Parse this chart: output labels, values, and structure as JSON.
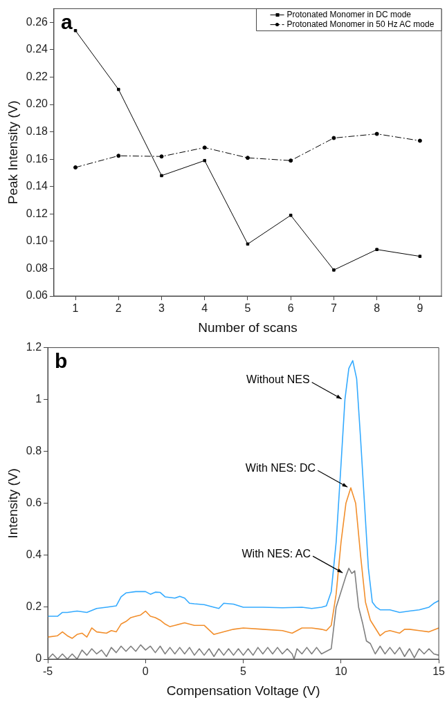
{
  "chart_data": [
    {
      "type": "line",
      "xlabel": "Number of scans",
      "ylabel": "Peak Intensity (V)",
      "annotations": [
        "a"
      ],
      "legend": "top right",
      "grid": false,
      "x": [
        1,
        2,
        3,
        4,
        5,
        6,
        7,
        8,
        9
      ],
      "xlim": [
        0.5,
        9.5
      ],
      "xticks": [
        1,
        2,
        3,
        4,
        5,
        6,
        7,
        8,
        9
      ],
      "ylim": [
        0.06,
        0.27
      ],
      "yticks": [
        {
          "value": 0.06,
          "label": "0.06"
        },
        {
          "value": 0.08,
          "label": "0.08"
        },
        {
          "value": 0.1,
          "label": "0.10"
        },
        {
          "value": 0.12,
          "label": "0.12"
        },
        {
          "value": 0.14,
          "label": "0.14"
        },
        {
          "value": 0.16,
          "label": "0.16"
        },
        {
          "value": 0.18,
          "label": "0.18"
        },
        {
          "value": 0.2,
          "label": "0.20"
        },
        {
          "value": 0.22,
          "label": "0.22"
        },
        {
          "value": 0.24,
          "label": "0.24"
        },
        {
          "value": 0.26,
          "label": "0.26"
        }
      ],
      "series": [
        {
          "name": "Protonated Monomer in DC mode",
          "color": "#000000",
          "marker": "square",
          "line_style": "solid",
          "values": [
            0.254,
            0.211,
            0.148,
            0.159,
            0.098,
            0.119,
            0.079,
            0.094,
            0.089
          ]
        },
        {
          "name": "Protonated Monomer in 50 Hz AC mode",
          "color": "#000000",
          "marker": "circle",
          "line_style": "dashed",
          "values": [
            0.154,
            0.1625,
            0.162,
            0.1685,
            0.161,
            0.159,
            0.1755,
            0.1785,
            0.1735
          ]
        }
      ]
    },
    {
      "type": "line",
      "xlabel": "Compensation Voltage (V)",
      "ylabel": "Intensity (V)",
      "grid": false,
      "marker": "none",
      "annotations": [
        "b",
        {
          "text": "Without NES",
          "x": 10.1,
          "y": 1.0
        },
        {
          "text": "With NES: DC",
          "x": 10.4,
          "y": 0.66
        },
        {
          "text": "With NES: AC",
          "x": 10.15,
          "y": 0.33
        }
      ],
      "xlim": [
        -5,
        15
      ],
      "xticks": [
        -5,
        0,
        5,
        10,
        15
      ],
      "ylim": [
        0,
        1.2
      ],
      "yticks": [
        0,
        0.2,
        0.4,
        0.6,
        0.8,
        1,
        1.2
      ],
      "series": [
        {
          "color": "#33aaff",
          "x": [
            -5,
            -4.5,
            -4.25,
            -4,
            -3.5,
            -3,
            -2.5,
            -2,
            -1.5,
            -1.25,
            -1,
            -0.5,
            0,
            0.25,
            0.5,
            0.75,
            1,
            1.5,
            1.75,
            2,
            2.25,
            2.5,
            3,
            3.5,
            3.75,
            4,
            4.5,
            5,
            5.5,
            6,
            7,
            8,
            8.5,
            9,
            9.25,
            9.5,
            9.75,
            10,
            10.2,
            10.4,
            10.6,
            10.8,
            11,
            11.2,
            11.4,
            11.6,
            11.8,
            12,
            12.5,
            13,
            13.5,
            14,
            14.5,
            14.75,
            15
          ],
          "values": [
            0.165,
            0.165,
            0.18,
            0.18,
            0.185,
            0.18,
            0.195,
            0.2,
            0.205,
            0.24,
            0.255,
            0.26,
            0.26,
            0.25,
            0.258,
            0.257,
            0.24,
            0.235,
            0.242,
            0.235,
            0.215,
            0.213,
            0.21,
            0.2,
            0.195,
            0.215,
            0.212,
            0.2,
            0.2,
            0.2,
            0.198,
            0.2,
            0.195,
            0.2,
            0.205,
            0.26,
            0.45,
            0.75,
            1.0,
            1.12,
            1.15,
            1.08,
            0.85,
            0.6,
            0.35,
            0.22,
            0.2,
            0.19,
            0.19,
            0.18,
            0.185,
            0.19,
            0.2,
            0.215,
            0.225
          ]
        },
        {
          "color": "#f28e2b",
          "x": [
            -5,
            -4.5,
            -4.25,
            -4,
            -3.75,
            -3.5,
            -3.25,
            -3,
            -2.75,
            -2.5,
            -2,
            -1.75,
            -1.5,
            -1.25,
            -1,
            -0.75,
            -0.5,
            -0.25,
            0,
            0.25,
            0.5,
            0.75,
            1,
            1.25,
            1.5,
            2,
            2.5,
            3,
            3.5,
            4,
            4.5,
            5,
            6,
            7,
            7.5,
            8,
            8.5,
            9,
            9.25,
            9.5,
            9.75,
            10,
            10.25,
            10.5,
            10.75,
            11,
            11.25,
            11.5,
            11.75,
            12,
            12.25,
            12.5,
            13,
            13.25,
            13.5,
            14,
            14.5,
            15
          ],
          "values": [
            0.085,
            0.09,
            0.105,
            0.09,
            0.08,
            0.095,
            0.1,
            0.085,
            0.12,
            0.105,
            0.1,
            0.11,
            0.105,
            0.135,
            0.145,
            0.16,
            0.165,
            0.17,
            0.185,
            0.165,
            0.16,
            0.15,
            0.135,
            0.125,
            0.13,
            0.14,
            0.13,
            0.13,
            0.095,
            0.105,
            0.115,
            0.12,
            0.115,
            0.11,
            0.1,
            0.12,
            0.12,
            0.115,
            0.11,
            0.13,
            0.25,
            0.45,
            0.6,
            0.66,
            0.6,
            0.4,
            0.22,
            0.15,
            0.12,
            0.09,
            0.105,
            0.11,
            0.1,
            0.115,
            0.115,
            0.11,
            0.105,
            0.12
          ]
        },
        {
          "color": "#7f7f7f",
          "x": [
            -5,
            -4.75,
            -4.5,
            -4.25,
            -4,
            -3.75,
            -3.5,
            -3.25,
            -3,
            -2.75,
            -2.5,
            -2.25,
            -2,
            -1.75,
            -1.5,
            -1.25,
            -1,
            -0.75,
            -0.5,
            -0.25,
            0,
            0.25,
            0.5,
            0.75,
            1,
            1.25,
            1.5,
            1.75,
            2,
            2.25,
            2.5,
            2.75,
            3,
            3.25,
            3.5,
            3.75,
            4,
            4.25,
            4.5,
            4.75,
            5,
            5.25,
            5.5,
            5.75,
            6,
            6.25,
            6.5,
            6.75,
            7,
            7.25,
            7.5,
            7.6,
            7.75,
            8,
            8.25,
            8.5,
            8.75,
            9,
            9.25,
            9.5,
            9.75,
            10,
            10.25,
            10.4,
            10.55,
            10.7,
            10.9,
            11.1,
            11.3,
            11.5,
            11.75,
            12,
            12.25,
            12.5,
            12.75,
            13,
            13.25,
            13.5,
            13.75,
            14,
            14.25,
            14.5,
            14.75,
            15
          ],
          "values": [
            0,
            0.02,
            0,
            0.02,
            0,
            0.02,
            0,
            0.035,
            0.015,
            0.04,
            0.02,
            0.035,
            0.01,
            0.045,
            0.025,
            0.05,
            0.03,
            0.05,
            0.03,
            0.055,
            0.035,
            0.05,
            0.025,
            0.05,
            0.02,
            0.045,
            0.02,
            0.045,
            0.02,
            0.045,
            0.015,
            0.04,
            0.015,
            0.04,
            0.01,
            0.04,
            0.015,
            0.04,
            0.015,
            0.04,
            0.015,
            0.04,
            0.015,
            0.045,
            0.02,
            0.045,
            0.02,
            0.045,
            0.02,
            0.04,
            0.02,
            0,
            0.04,
            0.02,
            0.045,
            0.02,
            0.045,
            0.02,
            0.03,
            0.04,
            0.2,
            0.26,
            0.32,
            0.35,
            0.33,
            0.34,
            0.2,
            0.14,
            0.07,
            0.06,
            0.02,
            0.05,
            0.02,
            0.045,
            0.02,
            0.045,
            0.01,
            0.04,
            0.005,
            0.04,
            0.02,
            0.04,
            0.02,
            0.015
          ]
        }
      ]
    }
  ]
}
